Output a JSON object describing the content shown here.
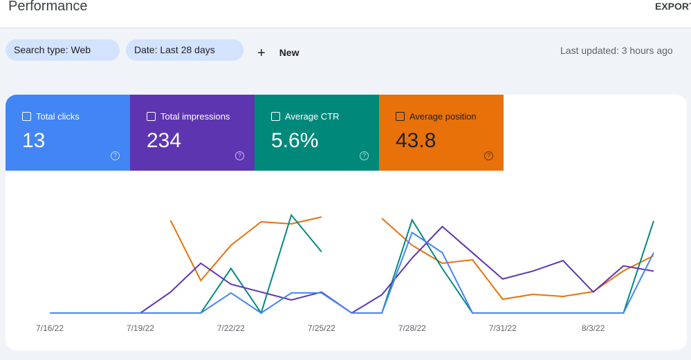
{
  "header": {
    "title": "Performance",
    "export": "EXPORT"
  },
  "filters": {
    "search_type": "Search type: Web",
    "date": "Date: Last 28 days",
    "new": "New",
    "last_updated": "Last updated: 3 hours ago"
  },
  "metrics": [
    {
      "label": "Total clicks",
      "value": "13",
      "color": "#4285f4"
    },
    {
      "label": "Total impressions",
      "value": "234",
      "color": "#5e35b1"
    },
    {
      "label": "Average CTR",
      "value": "5.6%",
      "color": "#00897b"
    },
    {
      "label": "Average position",
      "value": "43.8",
      "color": "#e8710a"
    }
  ],
  "chart_data": {
    "type": "line",
    "categories": [
      "7/16/22",
      null,
      null,
      "7/19/22",
      null,
      null,
      "7/22/22",
      null,
      null,
      "7/25/22",
      null,
      null,
      "7/28/22",
      null,
      null,
      "7/31/22",
      null,
      null,
      "8/3/22",
      null,
      null
    ],
    "series": [
      {
        "name": "Total clicks",
        "color": "#4285f4",
        "ylim": [
          0,
          5.6
        ],
        "values": [
          0,
          0,
          0,
          0,
          0,
          0,
          1,
          0,
          1,
          1,
          0,
          0,
          4,
          3,
          0,
          0,
          0,
          0,
          0,
          0,
          3
        ]
      },
      {
        "name": "Total impressions",
        "color": "#5e35b1",
        "ylim": [
          0,
          43
        ],
        "values": [
          0,
          0,
          0,
          0,
          8,
          19,
          11,
          8,
          5,
          8,
          0,
          7,
          21,
          33,
          23,
          13,
          16,
          20,
          8,
          18,
          16
        ]
      },
      {
        "name": "Average CTR",
        "color": "#00897b",
        "ylim": [
          0,
          23
        ],
        "values": [
          0,
          0,
          0,
          0,
          0,
          0,
          9.1,
          0,
          20,
          12.5,
          null,
          0,
          19,
          9.1,
          0,
          0,
          0,
          0,
          0,
          0,
          18.8
        ]
      },
      {
        "name": "Average position",
        "color": "#e8710a",
        "ylim": [
          81.5,
          0
        ],
        "values": [
          null,
          null,
          null,
          null,
          14.5,
          58,
          32.5,
          15.5,
          17,
          12,
          null,
          13,
          32.5,
          45.5,
          43,
          71.5,
          68,
          69.5,
          66,
          51,
          40
        ]
      }
    ]
  }
}
